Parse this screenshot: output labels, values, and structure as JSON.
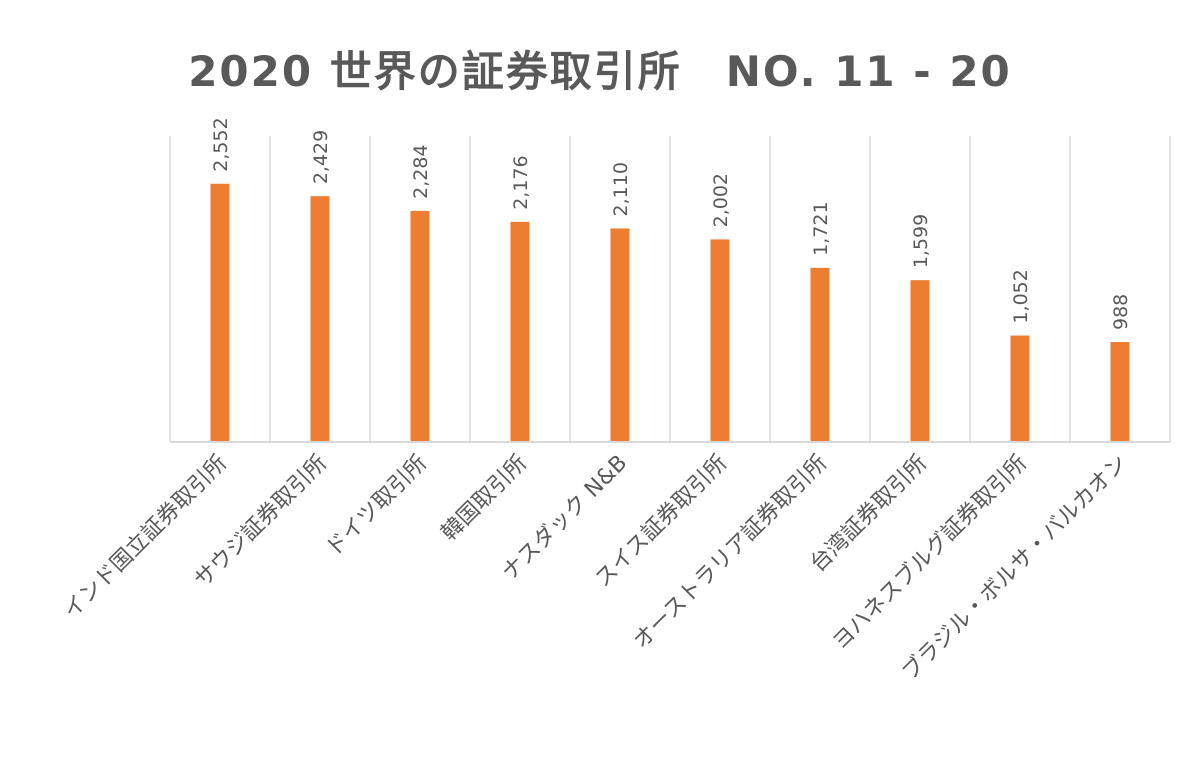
{
  "chart_data": {
    "type": "bar",
    "title": "2020 世界の証券取引所　NO. 11 - 20",
    "xlabel": "",
    "ylabel": "",
    "ylim": [
      0,
      2800
    ],
    "grid": "vertical separators between categories",
    "legend": "none",
    "bar_color": "#ED7D31",
    "categories": [
      "インド国立証券取引所",
      "サウジ証券取引所",
      "ドイツ取引所",
      "韓国取引所",
      "ナスダック N&B",
      "スイス証券取引所",
      "オーストラリア証券取引所",
      "台湾証券取引所",
      "ヨハネスブルグ証券取引所",
      "ブラジル・ボルサ・バルカオン"
    ],
    "values": [
      2552,
      2429,
      2284,
      2176,
      2110,
      2002,
      1721,
      1599,
      1052,
      988
    ],
    "data_labels": [
      "2,552",
      "2,429",
      "2,284",
      "2,176",
      "2,110",
      "2,002",
      "1,721",
      "1,599",
      "1,052",
      "988"
    ]
  }
}
